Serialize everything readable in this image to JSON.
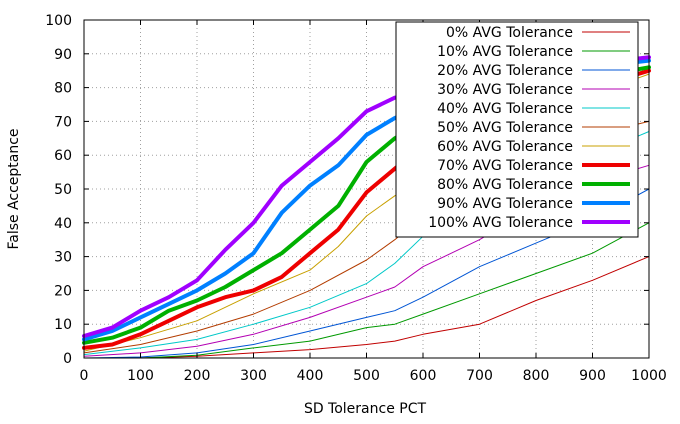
{
  "chart_data": {
    "type": "line",
    "title": "",
    "xlabel": "SD Tolerance PCT",
    "ylabel": "False Acceptance",
    "xlim": [
      0,
      1000
    ],
    "ylim": [
      0,
      100
    ],
    "xticks": [
      0,
      100,
      200,
      300,
      400,
      500,
      600,
      700,
      800,
      900,
      1000
    ],
    "yticks": [
      0,
      10,
      20,
      30,
      40,
      50,
      60,
      70,
      80,
      90,
      100
    ],
    "xtick_labels": [
      "0",
      "100",
      "200",
      "300",
      "400",
      "500",
      "600",
      "700",
      "800",
      "900",
      "1000"
    ],
    "ytick_labels": [
      "0",
      "10",
      "20",
      "30",
      "40",
      "50",
      "60",
      "70",
      "80",
      "90",
      "100"
    ],
    "grid": true,
    "legend_position": "top-right",
    "series": [
      {
        "name": "0% AVG Tolerance",
        "color": "#c00000",
        "bold": false,
        "x": [
          0,
          100,
          200,
          300,
          400,
          500,
          550,
          600,
          700,
          800,
          900,
          1000
        ],
        "y": [
          0,
          0,
          0.5,
          1.5,
          2.5,
          4,
          5,
          7,
          10,
          17,
          23,
          30
        ]
      },
      {
        "name": "10% AVG Tolerance",
        "color": "#009900",
        "bold": false,
        "x": [
          0,
          100,
          200,
          300,
          400,
          500,
          550,
          600,
          700,
          800,
          900,
          1000
        ],
        "y": [
          0,
          0,
          0.8,
          3,
          5,
          9,
          10,
          13,
          19,
          25,
          31,
          40
        ]
      },
      {
        "name": "20% AVG Tolerance",
        "color": "#0055d4",
        "bold": false,
        "x": [
          0,
          100,
          200,
          300,
          400,
          500,
          550,
          600,
          700,
          800,
          900,
          1000
        ],
        "y": [
          0,
          0.3,
          1.5,
          4,
          8,
          12,
          14,
          18,
          27,
          34,
          41,
          50
        ]
      },
      {
        "name": "30% AVG Tolerance",
        "color": "#b300b3",
        "bold": false,
        "x": [
          0,
          100,
          200,
          300,
          400,
          500,
          550,
          600,
          650,
          700,
          800,
          900,
          1000
        ],
        "y": [
          0.5,
          1.5,
          3.5,
          7,
          12,
          18,
          21,
          27,
          31,
          35,
          45,
          52,
          57
        ]
      },
      {
        "name": "40% AVG Tolerance",
        "color": "#00c8c8",
        "bold": false,
        "x": [
          0,
          100,
          200,
          300,
          400,
          500,
          550,
          600,
          700,
          800,
          900,
          1000
        ],
        "y": [
          1,
          3,
          5.5,
          10,
          15,
          22,
          28,
          36,
          42,
          52,
          60,
          67
        ]
      },
      {
        "name": "50% AVG Tolerance",
        "color": "#b33c00",
        "bold": false,
        "x": [
          0,
          100,
          200,
          300,
          400,
          500,
          550,
          600,
          700,
          800,
          900,
          1000
        ],
        "y": [
          1.5,
          4,
          8,
          13,
          20,
          29,
          35,
          42,
          52,
          60,
          66,
          70
        ]
      },
      {
        "name": "60% AVG Tolerance",
        "color": "#c8a000",
        "bold": false,
        "x": [
          0,
          100,
          200,
          300,
          400,
          450,
          500,
          550,
          600,
          700,
          800,
          900,
          1000
        ],
        "y": [
          2,
          6,
          11,
          19,
          26,
          33,
          42,
          48,
          53,
          62,
          70,
          78,
          84
        ]
      },
      {
        "name": "70% AVG Tolerance",
        "color": "#ee0000",
        "bold": true,
        "x": [
          0,
          50,
          100,
          150,
          200,
          250,
          300,
          350,
          400,
          450,
          500,
          550,
          600,
          700,
          800,
          900,
          1000
        ],
        "y": [
          3,
          4,
          7,
          11,
          15,
          18,
          20,
          24,
          31,
          38,
          49,
          56,
          63,
          70,
          76,
          80,
          85
        ]
      },
      {
        "name": "80% AVG Tolerance",
        "color": "#00b000",
        "bold": true,
        "x": [
          0,
          50,
          100,
          150,
          200,
          250,
          300,
          350,
          400,
          450,
          500,
          550,
          600,
          700,
          800,
          900,
          1000
        ],
        "y": [
          4.5,
          6,
          9,
          14,
          17,
          21,
          26,
          31,
          38,
          45,
          58,
          65,
          70,
          76,
          80,
          83,
          86
        ]
      },
      {
        "name": "90% AVG Tolerance",
        "color": "#0080ff",
        "bold": true,
        "x": [
          0,
          50,
          100,
          150,
          200,
          250,
          300,
          350,
          400,
          450,
          500,
          550,
          600,
          700,
          800,
          900,
          1000
        ],
        "y": [
          5.5,
          8,
          12,
          16,
          20,
          25,
          31,
          43,
          51,
          57,
          66,
          71,
          75,
          79,
          83,
          86,
          88
        ]
      },
      {
        "name": "100% AVG Tolerance",
        "color": "#a000ff",
        "bold": true,
        "x": [
          0,
          50,
          100,
          150,
          200,
          250,
          300,
          350,
          400,
          450,
          500,
          550,
          600,
          700,
          800,
          900,
          1000
        ],
        "y": [
          6.5,
          9,
          14,
          18,
          23,
          32,
          40,
          51,
          58,
          65,
          73,
          77,
          79,
          82,
          85,
          87,
          89
        ]
      }
    ]
  }
}
